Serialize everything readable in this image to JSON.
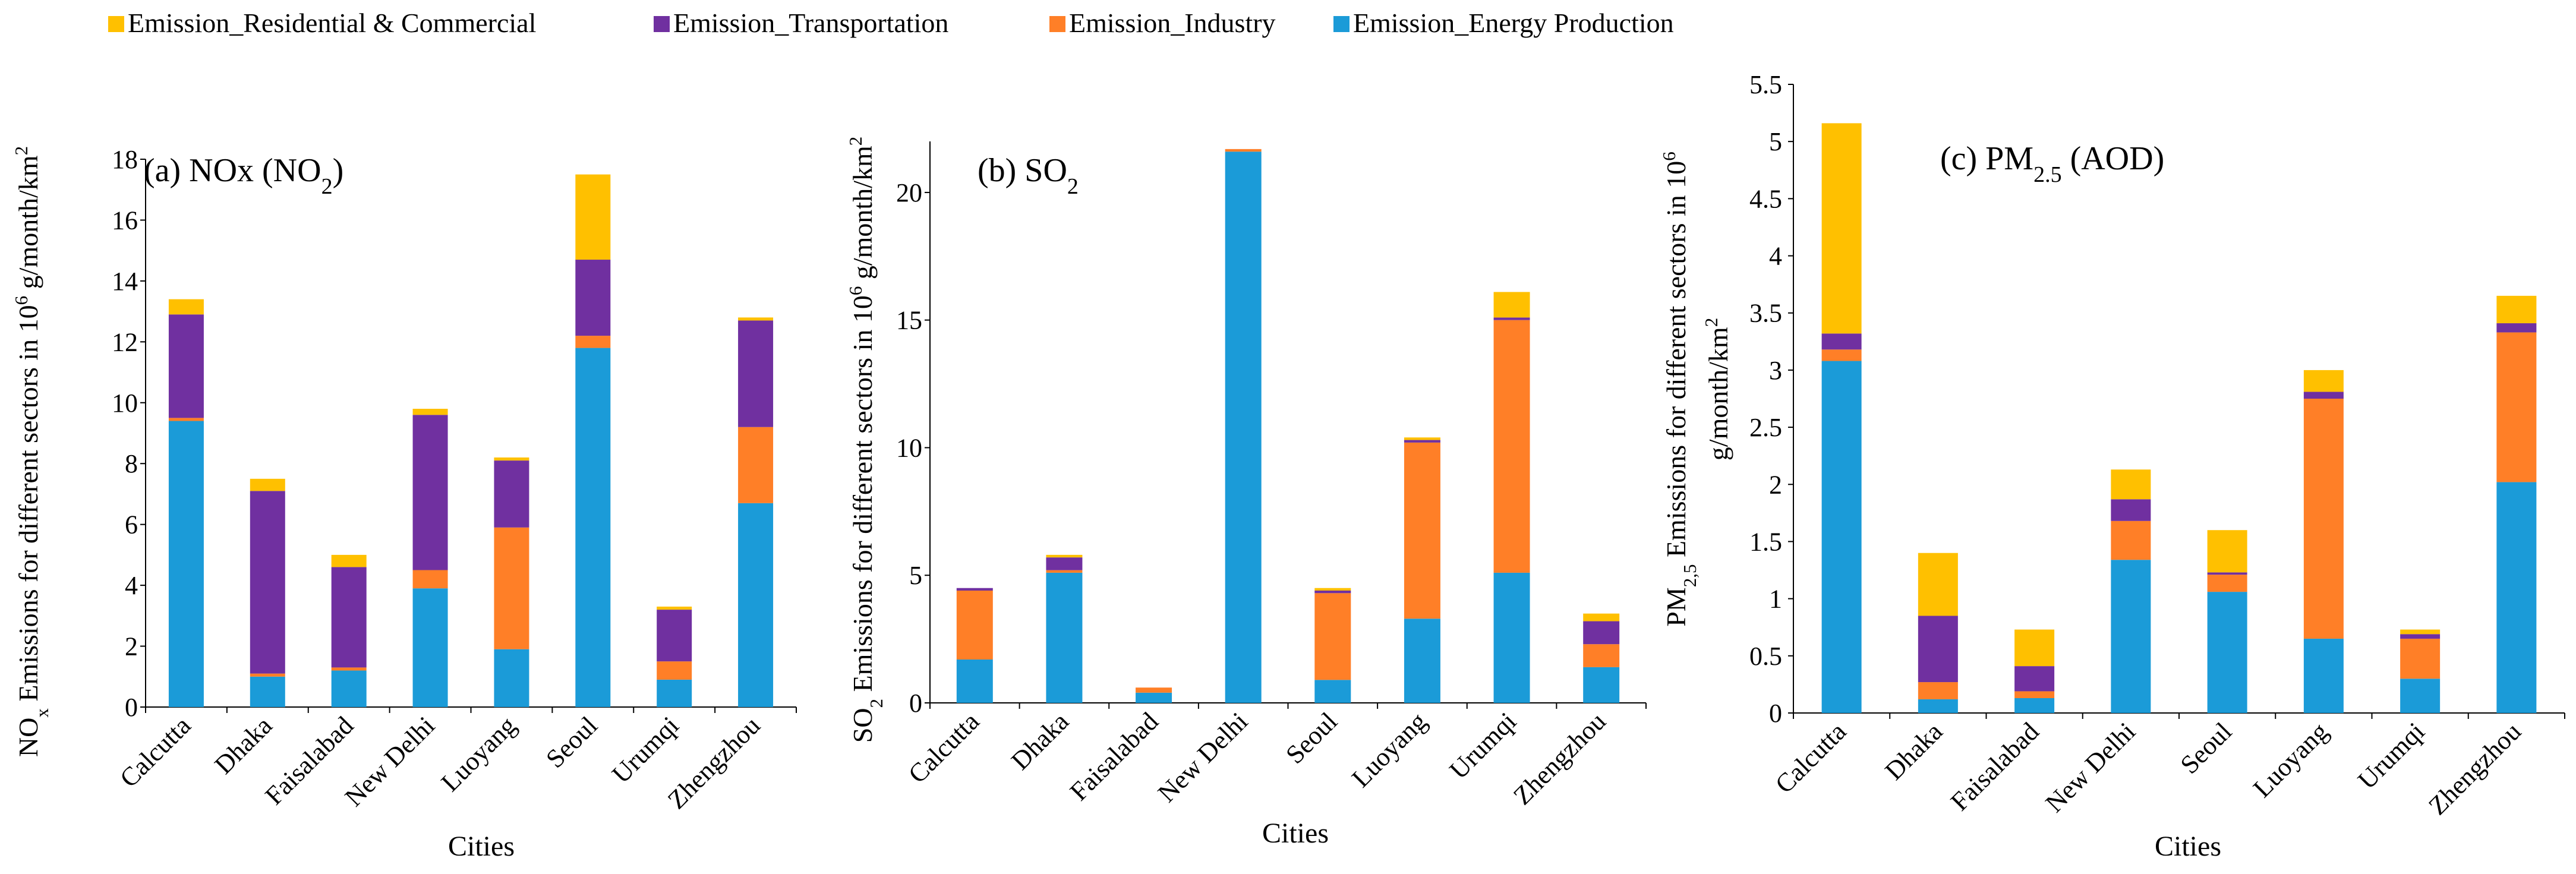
{
  "legend": [
    {
      "key": "res",
      "label": "Emission_Residential & Commercial",
      "color": "#FFC000"
    },
    {
      "key": "trans",
      "label": "Emission_Transportation",
      "color": "#7030A0"
    },
    {
      "key": "ind",
      "label": "Emission_Industry",
      "color": "#FF7F27"
    },
    {
      "key": "energy",
      "label": "Emission_Energy Production",
      "color": "#1B9BD8"
    }
  ],
  "chart_data": [
    {
      "type": "bar",
      "stacked": true,
      "title_main": "(a) NOx (NO",
      "title_sub": "2",
      "title_tail": ")",
      "xlabel": "Cities",
      "ylabel_parts": [
        [
          "NO",
          ""
        ],
        [
          "x",
          "sub"
        ],
        [
          " Emissions for different sectors in 10",
          ""
        ],
        [
          "6",
          "sup"
        ],
        [
          " g/month/km",
          ""
        ],
        [
          "2",
          "sup"
        ]
      ],
      "ylim": [
        0,
        18
      ],
      "ytick_values": [
        0,
        2,
        4,
        6,
        8,
        10,
        12,
        14,
        16,
        18
      ],
      "ytick_labels": [
        "0",
        "2",
        "4",
        "6",
        "8",
        "10",
        "12",
        "14",
        "16",
        "18"
      ],
      "categories": [
        "Calcutta",
        "Dhaka",
        "Faisalabad",
        "New Delhi",
        "Luoyang",
        "Seoul",
        "Urumqi",
        "Zhengzhou"
      ],
      "series": [
        {
          "name": "Emission_Energy Production",
          "values": [
            9.4,
            1.0,
            1.2,
            3.9,
            1.9,
            11.8,
            0.9,
            6.7
          ]
        },
        {
          "name": "Emission_Industry",
          "values": [
            0.1,
            0.1,
            0.1,
            0.6,
            4.0,
            0.4,
            0.6,
            2.5
          ]
        },
        {
          "name": "Emission_Transportation",
          "values": [
            3.4,
            6.0,
            3.3,
            5.1,
            2.2,
            2.5,
            1.7,
            3.5
          ]
        },
        {
          "name": "Emission_Residential & Commercial",
          "values": [
            0.5,
            0.4,
            0.4,
            0.2,
            0.1,
            2.8,
            0.1,
            0.1
          ]
        }
      ]
    },
    {
      "type": "bar",
      "stacked": true,
      "title_main": "(b) SO",
      "title_sub": "2",
      "title_tail": "",
      "xlabel": "Cities",
      "ylabel_parts": [
        [
          "SO",
          ""
        ],
        [
          "2",
          "sub"
        ],
        [
          " Emissions for different sectors in 10",
          ""
        ],
        [
          "6",
          "sup"
        ],
        [
          " g/month/km",
          ""
        ],
        [
          "2",
          "sup"
        ]
      ],
      "ylim": [
        0,
        22
      ],
      "ytick_values": [
        0,
        5,
        10,
        15,
        20
      ],
      "ytick_labels": [
        "0",
        "5",
        "10",
        "15",
        "20"
      ],
      "categories": [
        "Calcutta",
        "Dhaka",
        "Faisalabad",
        "New Delhi",
        "Seoul",
        "Luoyang",
        "Urumqi",
        "Zhengzhou"
      ],
      "series": [
        {
          "name": "Emission_Energy Production",
          "values": [
            1.7,
            5.1,
            0.4,
            21.6,
            0.9,
            3.3,
            5.1,
            1.4
          ]
        },
        {
          "name": "Emission_Industry",
          "values": [
            2.7,
            0.1,
            0.2,
            0.1,
            3.4,
            6.9,
            9.9,
            0.9
          ]
        },
        {
          "name": "Emission_Transportation",
          "values": [
            0.1,
            0.5,
            0.0,
            0.0,
            0.1,
            0.1,
            0.1,
            0.9
          ]
        },
        {
          "name": "Emission_Residential & Commercial",
          "values": [
            0.0,
            0.1,
            0.0,
            0.0,
            0.1,
            0.1,
            1.0,
            0.3
          ]
        }
      ]
    },
    {
      "type": "bar",
      "stacked": true,
      "title_main": "(c) PM",
      "title_sub": "2.5",
      "title_tail": " (AOD)",
      "xlabel": "Cities",
      "ylabel_line1_parts": [
        [
          "PM",
          ""
        ],
        [
          "2,5",
          "sub"
        ],
        [
          " Emissions for different sectors in 10",
          ""
        ],
        [
          "6",
          "sup"
        ]
      ],
      "ylabel_line2_parts": [
        [
          "g/month/km",
          ""
        ],
        [
          "2",
          "sup"
        ]
      ],
      "ylim": [
        0,
        5.5
      ],
      "ytick_values": [
        0,
        0.5,
        1,
        1.5,
        2,
        2.5,
        3,
        3.5,
        4,
        4.5,
        5,
        5.5
      ],
      "ytick_labels": [
        "0",
        "0.5",
        "1",
        "1.5",
        "2",
        "2.5",
        "3",
        "3.5",
        "4",
        "4.5",
        "5",
        "5.5"
      ],
      "categories": [
        "Calcutta",
        "Dhaka",
        "Faisalabad",
        "New Delhi",
        "Seoul",
        "Luoyang",
        "Urumqi",
        "Zhengzhou"
      ],
      "series": [
        {
          "name": "Emission_Energy Production",
          "values": [
            3.08,
            0.12,
            0.13,
            1.34,
            1.06,
            0.65,
            0.3,
            2.02
          ]
        },
        {
          "name": "Emission_Industry",
          "values": [
            0.1,
            0.15,
            0.06,
            0.34,
            0.15,
            2.1,
            0.35,
            1.31
          ]
        },
        {
          "name": "Emission_Transportation",
          "values": [
            0.14,
            0.58,
            0.22,
            0.19,
            0.02,
            0.06,
            0.04,
            0.08
          ]
        },
        {
          "name": "Emission_Residential & Commercial",
          "values": [
            1.84,
            0.55,
            0.32,
            0.26,
            0.37,
            0.19,
            0.04,
            0.24
          ]
        }
      ]
    }
  ]
}
